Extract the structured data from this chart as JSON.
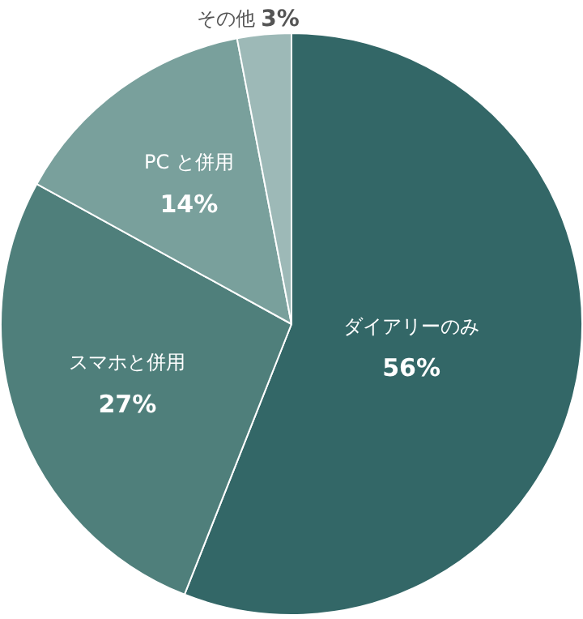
{
  "chart_data": {
    "type": "pie",
    "categories": [
      "ダイアリーのみ",
      "スマホと併用",
      "PC と併用",
      "その他"
    ],
    "values": [
      56,
      27,
      14,
      3
    ],
    "value_labels": [
      "56%",
      "27%",
      "14%",
      "3%"
    ],
    "colors": [
      "#336767",
      "#4f7f7b",
      "#79a09c",
      "#9db9b7"
    ],
    "legend": false
  }
}
